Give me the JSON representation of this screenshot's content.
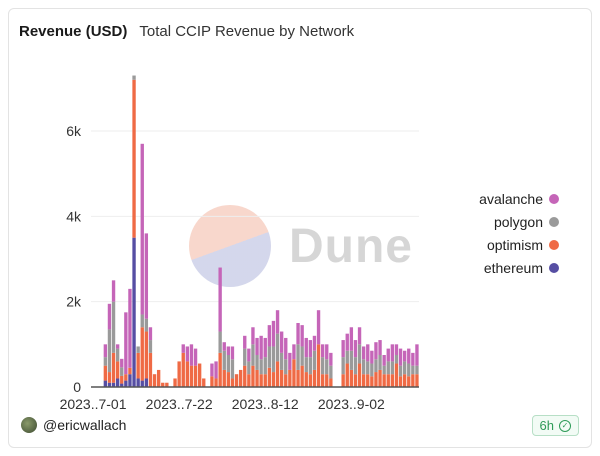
{
  "header": {
    "title": "Revenue (USD)",
    "subtitle": "Total CCIP Revenue by Network"
  },
  "watermark": {
    "text": "Dune"
  },
  "footer": {
    "user": "@ericwallach",
    "refresh": "6h",
    "refresh_icon": "check-circle-icon"
  },
  "colors": {
    "avalanche": "#c565b8",
    "polygon": "#9a9a9a",
    "optimism": "#ef6a45",
    "ethereum": "#564ea3",
    "grid": "#eeeeee",
    "axis": "#555555"
  },
  "chart_data": {
    "type": "bar",
    "stacked": true,
    "title": "Total CCIP Revenue by Network",
    "ylabel": "Revenue (USD)",
    "ylim": [
      0,
      7500
    ],
    "yticks": [
      0,
      2000,
      4000,
      6000
    ],
    "ytick_labels": [
      "0",
      "2k",
      "4k",
      "6k"
    ],
    "xtick_labels": [
      "2023..7-01",
      "2023..7-22",
      "2023..8-12",
      "2023..9-02"
    ],
    "xtick_index": [
      0,
      21,
      42,
      63
    ],
    "legend": [
      "avalanche",
      "polygon",
      "optimism",
      "ethereum"
    ],
    "legend_position": "right",
    "grid": true,
    "series": [
      {
        "name": "ethereum",
        "values": [
          0,
          0,
          0,
          150,
          100,
          100,
          200,
          80,
          150,
          300,
          3500,
          200,
          150,
          200,
          0,
          0,
          0,
          0,
          0,
          0,
          0,
          0,
          0,
          0,
          0,
          0,
          0,
          0,
          0,
          0,
          0,
          0,
          0,
          0,
          0,
          0,
          0,
          0,
          0,
          0,
          0,
          0,
          0,
          0,
          0,
          0,
          0,
          0,
          0,
          0,
          0,
          0,
          0,
          0,
          0,
          0,
          0,
          0,
          0,
          0,
          0,
          0,
          0,
          0,
          0,
          0,
          0,
          0,
          0,
          0,
          0,
          0,
          0,
          0,
          0,
          0,
          0,
          0,
          0,
          0
        ]
      },
      {
        "name": "optimism",
        "values": [
          0,
          0,
          0,
          350,
          250,
          700,
          400,
          180,
          150,
          150,
          3700,
          600,
          1250,
          1100,
          800,
          300,
          400,
          100,
          100,
          0,
          200,
          600,
          800,
          600,
          500,
          500,
          550,
          200,
          0,
          250,
          200,
          800,
          400,
          350,
          200,
          300,
          400,
          500,
          300,
          500,
          400,
          300,
          300,
          450,
          350,
          600,
          400,
          300,
          400,
          650,
          400,
          500,
          350,
          300,
          400,
          1000,
          300,
          300,
          200,
          0,
          0,
          300,
          550,
          400,
          300,
          550,
          300,
          300,
          250,
          350,
          400,
          300,
          300,
          300,
          550,
          250,
          300,
          250,
          300,
          300
        ]
      },
      {
        "name": "polygon",
        "values": [
          0,
          0,
          0,
          200,
          1000,
          1200,
          300,
          200,
          0,
          0,
          100,
          150,
          300,
          300,
          300,
          0,
          0,
          0,
          0,
          0,
          0,
          0,
          0,
          0,
          0,
          0,
          0,
          0,
          0,
          0,
          0,
          500,
          450,
          400,
          450,
          0,
          0,
          400,
          300,
          500,
          350,
          350,
          400,
          500,
          600,
          650,
          400,
          350,
          0,
          0,
          600,
          450,
          350,
          400,
          450,
          0,
          400,
          350,
          300,
          0,
          0,
          400,
          300,
          450,
          400,
          450,
          350,
          300,
          300,
          300,
          350,
          200,
          300,
          300,
          200,
          250,
          300,
          300,
          200,
          200
        ]
      },
      {
        "name": "avalanche",
        "values": [
          0,
          0,
          0,
          300,
          600,
          500,
          100,
          200,
          1450,
          1850,
          0,
          0,
          4000,
          2000,
          300,
          0,
          0,
          0,
          0,
          0,
          0,
          0,
          200,
          350,
          500,
          400,
          0,
          0,
          0,
          300,
          400,
          1500,
          200,
          200,
          300,
          0,
          0,
          300,
          300,
          400,
          400,
          550,
          450,
          500,
          600,
          550,
          500,
          500,
          400,
          350,
          500,
          500,
          450,
          400,
          350,
          800,
          300,
          350,
          300,
          0,
          0,
          400,
          400,
          550,
          400,
          400,
          300,
          400,
          300,
          400,
          350,
          250,
          300,
          400,
          250,
          400,
          250,
          350,
          300,
          500
        ]
      }
    ]
  }
}
